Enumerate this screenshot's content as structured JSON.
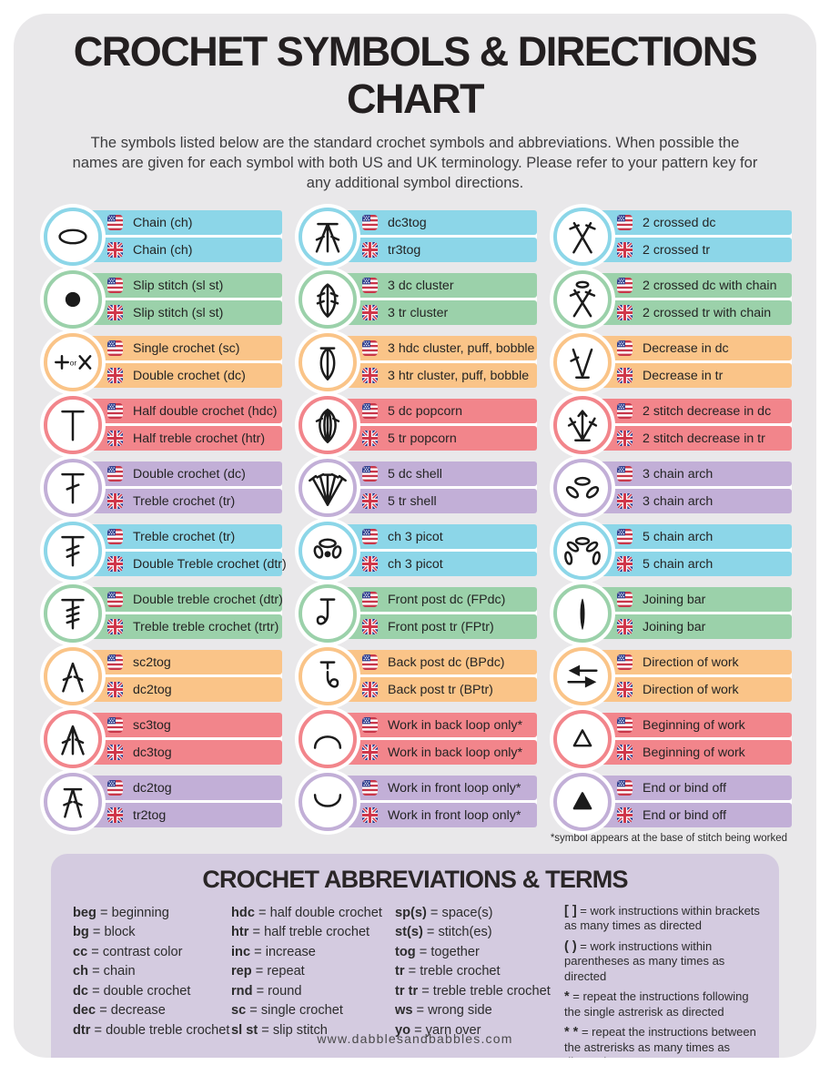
{
  "page": {
    "title": "CROCHET SYMBOLS & DIRECTIONS CHART",
    "intro": "The symbols listed below are the standard crochet symbols and abbreviations. When possible the names are given for each symbol with both US and UK terminology. Please refer to your pattern key for any additional symbol directions.",
    "footnote": "*symbol appears at the base of stitch being worked",
    "footer": "www.dabblesandbabbles.com"
  },
  "colors": {
    "cyan": "#8cd6e8",
    "green": "#9bd1aa",
    "orange": "#fac488",
    "red": "#f2858b",
    "purple": "#c2afd7",
    "background": "#e9e8ea",
    "panel": "#d4cbe0"
  },
  "symbols": {
    "columns": [
      [
        {
          "symbol": "chain-icon",
          "us": "Chain (ch)",
          "uk": "Chain (ch)",
          "color": "cyan"
        },
        {
          "symbol": "slip-stitch-icon",
          "us": "Slip stitch (sl st)",
          "uk": "Slip stitch (sl st)",
          "color": "green"
        },
        {
          "symbol": "single-crochet-icon",
          "us": "Single crochet (sc)",
          "uk": "Double crochet (dc)",
          "color": "orange"
        },
        {
          "symbol": "half-double-crochet-icon",
          "us": "Half double crochet (hdc)",
          "uk": "Half treble crochet (htr)",
          "color": "red"
        },
        {
          "symbol": "double-crochet-icon",
          "us": "Double crochet (dc)",
          "uk": "Treble crochet (tr)",
          "color": "purple"
        },
        {
          "symbol": "treble-crochet-icon",
          "us": "Treble crochet (tr)",
          "uk": "Double Treble crochet (dtr)",
          "color": "cyan"
        },
        {
          "symbol": "double-treble-crochet-icon",
          "us": "Double treble crochet (dtr)",
          "uk": "Treble treble crochet (trtr)",
          "color": "green"
        },
        {
          "symbol": "sc2tog-icon",
          "us": "sc2tog",
          "uk": "dc2tog",
          "color": "orange"
        },
        {
          "symbol": "sc3tog-icon",
          "us": "sc3tog",
          "uk": "dc3tog",
          "color": "red"
        },
        {
          "symbol": "dc2tog-icon",
          "us": "dc2tog",
          "uk": "tr2tog",
          "color": "purple"
        }
      ],
      [
        {
          "symbol": "dc3tog-icon",
          "us": "dc3tog",
          "uk": "tr3tog",
          "color": "cyan"
        },
        {
          "symbol": "cluster-3dc-icon",
          "us": "3 dc cluster",
          "uk": "3 tr cluster",
          "color": "green"
        },
        {
          "symbol": "puff-bobble-icon",
          "us": "3 hdc cluster, puff, bobble",
          "uk": "3 htr cluster, puff, bobble",
          "color": "orange"
        },
        {
          "symbol": "popcorn-icon",
          "us": "5 dc popcorn",
          "uk": "5 tr popcorn",
          "color": "red"
        },
        {
          "symbol": "shell-icon",
          "us": "5 dc shell",
          "uk": "5 tr shell",
          "color": "purple"
        },
        {
          "symbol": "picot-icon",
          "us": "ch 3 picot",
          "uk": "ch 3 picot",
          "color": "cyan"
        },
        {
          "symbol": "front-post-icon",
          "us": "Front post dc (FPdc)",
          "uk": "Front post tr (FPtr)",
          "color": "green"
        },
        {
          "symbol": "back-post-icon",
          "us": "Back post dc (BPdc)",
          "uk": "Back post tr (BPtr)",
          "color": "orange"
        },
        {
          "symbol": "back-loop-icon",
          "us": "Work in back loop only*",
          "uk": "Work in back loop only*",
          "color": "red"
        },
        {
          "symbol": "front-loop-icon",
          "us": "Work in front loop only*",
          "uk": "Work in front loop only*",
          "color": "purple"
        }
      ],
      [
        {
          "symbol": "crossed-dc-icon",
          "us": "2 crossed dc",
          "uk": "2 crossed tr",
          "color": "cyan"
        },
        {
          "symbol": "crossed-dc-chain-icon",
          "us": "2 crossed dc with chain",
          "uk": "2 crossed tr with chain",
          "color": "green"
        },
        {
          "symbol": "decrease-icon",
          "us": "Decrease in dc",
          "uk": "Decrease in tr",
          "color": "orange"
        },
        {
          "symbol": "two-stitch-decrease-icon",
          "us": "2 stitch decrease in dc",
          "uk": "2 stitch decrease in tr",
          "color": "red"
        },
        {
          "symbol": "chain-arch-3-icon",
          "us": "3 chain arch",
          "uk": "3 chain arch",
          "color": "purple"
        },
        {
          "symbol": "chain-arch-5-icon",
          "us": "5 chain arch",
          "uk": "5 chain arch",
          "color": "cyan"
        },
        {
          "symbol": "joining-bar-icon",
          "us": "Joining bar",
          "uk": "Joining bar",
          "color": "green"
        },
        {
          "symbol": "direction-of-work-icon",
          "us": "Direction of work",
          "uk": "Direction of work",
          "color": "orange"
        },
        {
          "symbol": "beginning-of-work-icon",
          "us": "Beginning of work",
          "uk": "Beginning of work",
          "color": "red"
        },
        {
          "symbol": "end-bind-off-icon",
          "us": "End or bind off",
          "uk": "End or bind off",
          "color": "purple"
        }
      ]
    ]
  },
  "abbreviations": {
    "title": "CROCHET ABBREVIATIONS & TERMS",
    "columns": [
      [
        {
          "term": "beg",
          "def": "beginning"
        },
        {
          "term": "bg",
          "def": "block"
        },
        {
          "term": "cc",
          "def": "contrast color"
        },
        {
          "term": "ch",
          "def": "chain"
        },
        {
          "term": "dc",
          "def": "double crochet"
        },
        {
          "term": "dec",
          "def": "decrease"
        },
        {
          "term": "dtr",
          "def": "double treble crochet"
        }
      ],
      [
        {
          "term": "hdc",
          "def": "half double crochet"
        },
        {
          "term": "htr",
          "def": "half treble crochet"
        },
        {
          "term": "inc",
          "def": "increase"
        },
        {
          "term": "rep",
          "def": "repeat"
        },
        {
          "term": "rnd",
          "def": "round"
        },
        {
          "term": "sc",
          "def": "single crochet"
        },
        {
          "term": "sl st",
          "def": "slip stitch"
        }
      ],
      [
        {
          "term": "sp(s)",
          "def": "space(s)"
        },
        {
          "term": "st(s)",
          "def": "stitch(es)"
        },
        {
          "term": "tog",
          "def": "together"
        },
        {
          "term": "tr",
          "def": "treble crochet"
        },
        {
          "term": "tr tr",
          "def": "treble treble crochet"
        },
        {
          "term": "ws",
          "def": "wrong side"
        },
        {
          "term": "yo",
          "def": "yarn over"
        }
      ],
      [
        {
          "term": "[ ]",
          "def": "work instructions within brackets as many times as directed"
        },
        {
          "term": "( )",
          "def": "work instructions within parentheses as many times as directed"
        },
        {
          "term": "*",
          "def": "repeat the instructions following the single astrerisk as directed"
        },
        {
          "term": "* *",
          "def": "repeat the instructions between the astrerisks as many times as directed"
        }
      ]
    ]
  }
}
